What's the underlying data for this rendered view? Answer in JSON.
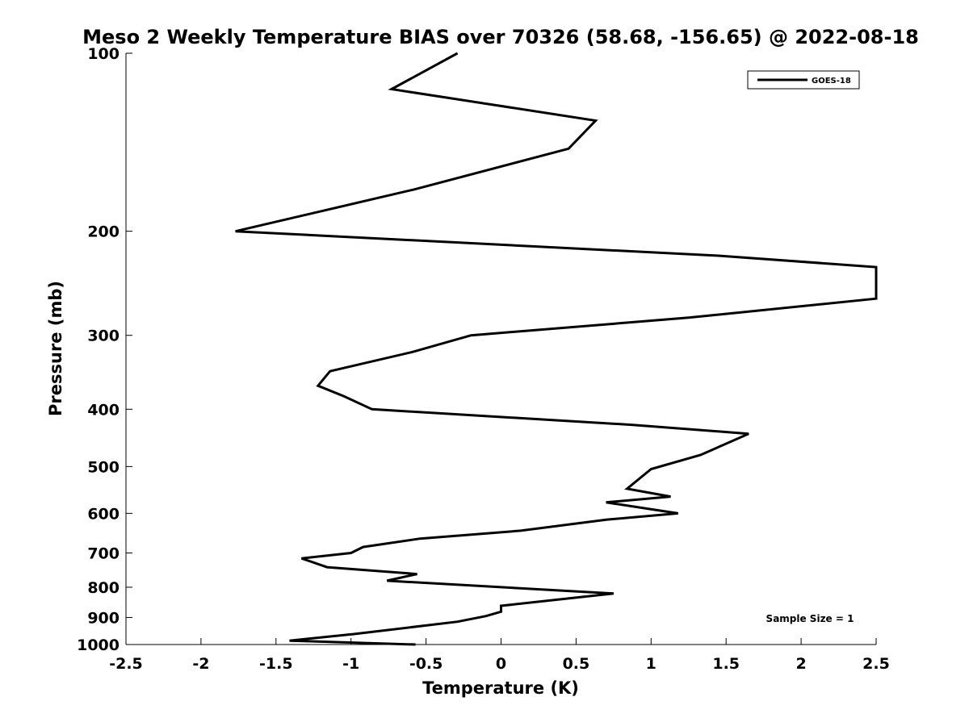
{
  "chart_data": {
    "type": "line",
    "title": "Meso 2 Weekly Temperature BIAS over 70326 (58.68, -156.65) @ 2022-08-18",
    "xlabel": "Temperature (K)",
    "ylabel": "Pressure (mb)",
    "xlim": [
      -2.5,
      2.5
    ],
    "ylim": [
      1000,
      100
    ],
    "yscale": "log",
    "xticks": [
      -2.5,
      -2,
      -1.5,
      -1,
      -0.5,
      0,
      0.5,
      1,
      1.5,
      2,
      2.5
    ],
    "xtick_labels": [
      "-2.5",
      "-2",
      "-1.5",
      "-1",
      "-0.5",
      "0",
      "0.5",
      "1",
      "1.5",
      "2",
      "2.5"
    ],
    "yticks": [
      100,
      200,
      300,
      400,
      500,
      600,
      700,
      800,
      900,
      1000
    ],
    "ytick_labels": [
      "100",
      "200",
      "300",
      "400",
      "500",
      "600",
      "700",
      "800",
      "900",
      "1000"
    ],
    "grid": false,
    "legend_position": "top-right",
    "annotation": "Sample Size = 1",
    "series": [
      {
        "name": "GOES-18",
        "color": "#000000",
        "points": [
          {
            "x": -0.29,
            "y": 100
          },
          {
            "x": -0.73,
            "y": 115
          },
          {
            "x": 0.63,
            "y": 130
          },
          {
            "x": 0.45,
            "y": 145
          },
          {
            "x": -0.58,
            "y": 170
          },
          {
            "x": -1.77,
            "y": 200
          },
          {
            "x": 1.45,
            "y": 220
          },
          {
            "x": 2.5,
            "y": 230
          },
          {
            "x": 2.5,
            "y": 260
          },
          {
            "x": 1.25,
            "y": 280
          },
          {
            "x": -0.2,
            "y": 300
          },
          {
            "x": -0.59,
            "y": 320
          },
          {
            "x": -1.14,
            "y": 345
          },
          {
            "x": -1.22,
            "y": 365
          },
          {
            "x": -1.05,
            "y": 380
          },
          {
            "x": -0.86,
            "y": 400
          },
          {
            "x": 0.87,
            "y": 425
          },
          {
            "x": 1.65,
            "y": 440
          },
          {
            "x": 1.33,
            "y": 478
          },
          {
            "x": 1.0,
            "y": 505
          },
          {
            "x": 0.84,
            "y": 545
          },
          {
            "x": 1.13,
            "y": 562
          },
          {
            "x": 0.7,
            "y": 575
          },
          {
            "x": 1.18,
            "y": 600
          },
          {
            "x": 0.7,
            "y": 615
          },
          {
            "x": 0.13,
            "y": 642
          },
          {
            "x": -0.54,
            "y": 662
          },
          {
            "x": -0.92,
            "y": 684
          },
          {
            "x": -1.0,
            "y": 700
          },
          {
            "x": -1.33,
            "y": 715
          },
          {
            "x": -1.16,
            "y": 740
          },
          {
            "x": -0.56,
            "y": 760
          },
          {
            "x": -0.76,
            "y": 780
          },
          {
            "x": 0.75,
            "y": 820
          },
          {
            "x": 0.0,
            "y": 860
          },
          {
            "x": 0.0,
            "y": 880
          },
          {
            "x": -0.1,
            "y": 895
          },
          {
            "x": -0.29,
            "y": 915
          },
          {
            "x": -0.98,
            "y": 960
          },
          {
            "x": -1.41,
            "y": 985
          },
          {
            "x": -0.57,
            "y": 1000
          }
        ]
      }
    ]
  }
}
